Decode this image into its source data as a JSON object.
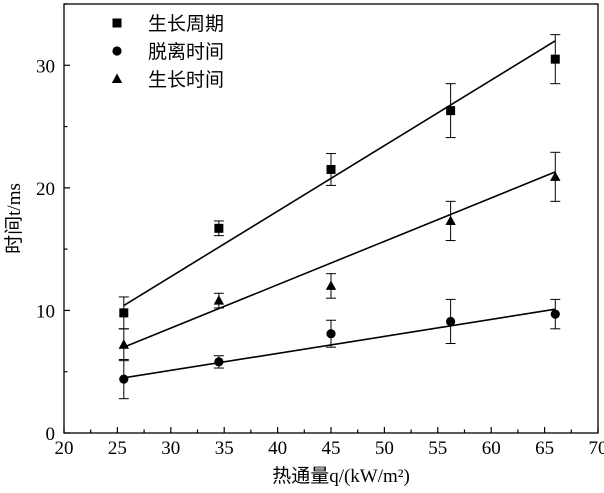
{
  "chart_data": {
    "type": "scatter",
    "xlabel": "热通量q/(kW/m²)",
    "ylabel": "时间t/ms",
    "xlim": [
      20,
      70
    ],
    "ylim": [
      0,
      35
    ],
    "x_ticks": [
      "20",
      "25",
      "30",
      "35",
      "40",
      "45",
      "50",
      "55",
      "60",
      "65",
      "70"
    ],
    "y_ticks": [
      "0",
      "10",
      "20",
      "30"
    ],
    "legend_position": "top-left",
    "grid": false,
    "series": [
      {
        "name": "生长周期",
        "marker": "square",
        "x": [
          25.6,
          34.5,
          45.0,
          56.2,
          66.0
        ],
        "y": [
          9.8,
          16.7,
          21.5,
          26.3,
          30.5
        ],
        "err": [
          1.3,
          0.6,
          1.3,
          2.2,
          2.0
        ],
        "fit": {
          "x": [
            25.6,
            66.0
          ],
          "y": [
            10.4,
            32.0
          ]
        }
      },
      {
        "name": "脱离时间",
        "marker": "circle",
        "x": [
          25.6,
          34.5,
          45.0,
          56.2,
          66.0
        ],
        "y": [
          4.4,
          5.8,
          8.1,
          9.1,
          9.7
        ],
        "err": [
          1.6,
          0.5,
          1.1,
          1.8,
          1.2
        ],
        "fit": {
          "x": [
            25.6,
            66.0
          ],
          "y": [
            4.5,
            10.1
          ]
        }
      },
      {
        "name": "生长时间",
        "marker": "triangle",
        "x": [
          25.6,
          34.5,
          45.0,
          56.2,
          66.0
        ],
        "y": [
          7.2,
          10.8,
          12.0,
          17.3,
          20.9
        ],
        "err": [
          1.3,
          0.6,
          1.0,
          1.6,
          2.0
        ],
        "fit": {
          "x": [
            25.6,
            66.0
          ],
          "y": [
            7.0,
            21.3
          ]
        }
      }
    ]
  }
}
